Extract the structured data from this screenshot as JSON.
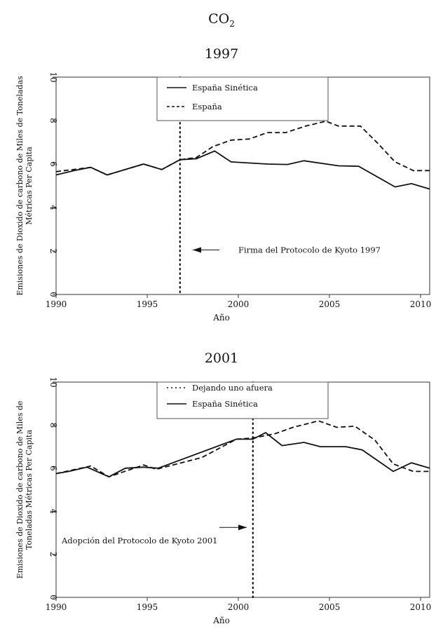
{
  "title": "CO",
  "title_subscript": "2",
  "colors": {
    "lines": "#111111",
    "background": "#ffffff"
  },
  "chart_data": [
    {
      "type": "line",
      "title": "1997",
      "xlabel": "Año",
      "ylabel_lines": [
        "Emisiones de Dioxido de carbono de Miles de Toneladas",
        "Métricas Per Capita"
      ],
      "xlim": [
        1990,
        2010.5
      ],
      "ylim": [
        0,
        10
      ],
      "xticks": [
        1990,
        1995,
        2000,
        2005,
        2010
      ],
      "yticks": [
        0,
        2,
        4,
        6,
        8,
        10
      ],
      "grid": false,
      "legend_placement": "top-center",
      "vline": {
        "x": 1996.8,
        "style": "dotted"
      },
      "annotation": {
        "text": "Firma del Protocolo de Kyoto 1997",
        "arrow": "left",
        "y": 2.05
      },
      "series": [
        {
          "name": "España Sinética",
          "style": "solid",
          "x": [
            1990,
            1991,
            1991.9,
            1992.8,
            1993.8,
            1994.8,
            1995.8,
            1996.8,
            1997.7,
            1998.7,
            1999.6,
            2001.6,
            2002.7,
            2003.6,
            2005.5,
            2006.6,
            2008.6,
            2009.5,
            2010.5
          ],
          "y": [
            5.5,
            5.7,
            5.85,
            5.5,
            5.75,
            6.0,
            5.75,
            6.2,
            6.25,
            6.6,
            6.1,
            6.0,
            5.98,
            6.15,
            5.92,
            5.9,
            4.95,
            5.1,
            4.85
          ]
        },
        {
          "name": "España",
          "style": "dashed",
          "x": [
            1990,
            1991.9,
            1992.8,
            1994.8,
            1995.8,
            1996.8,
            1997.7,
            1998.6,
            1999.6,
            2000.6,
            2001.6,
            2002.6,
            2003.7,
            2004.8,
            2005.5,
            2006.7,
            2007.6,
            2008.6,
            2009.6,
            2010.5
          ],
          "y": [
            5.65,
            5.85,
            5.5,
            6.0,
            5.75,
            6.2,
            6.3,
            6.8,
            7.1,
            7.15,
            7.45,
            7.45,
            7.75,
            7.97,
            7.75,
            7.75,
            7.0,
            6.1,
            5.7,
            5.7
          ]
        }
      ]
    },
    {
      "type": "line",
      "title": "2001",
      "xlabel": "Año",
      "ylabel_lines": [
        "Emisiones de Dioxido de carbono de Miles de",
        "Toneladas Métricas Per Capita"
      ],
      "xlim": [
        1990,
        2010.5
      ],
      "ylim": [
        0,
        10
      ],
      "xticks": [
        1990,
        1995,
        2000,
        2005,
        2010
      ],
      "yticks": [
        0,
        2,
        4,
        6,
        8,
        10
      ],
      "grid": false,
      "legend_placement": "top-center",
      "vline": {
        "x": 2000.8,
        "style": "dotted"
      },
      "annotation": {
        "text": "Adopción del Protocolo de Kyoto 2001",
        "arrow": "right",
        "y": 3.25
      },
      "series": [
        {
          "name": "Dejando uno afuera",
          "style": "dashed",
          "x": [
            1990,
            1991.9,
            1992.9,
            1994.8,
            1995.5,
            1998,
            1999.9,
            2000.8,
            2002,
            2003,
            2004.4,
            2005.4,
            2006.4,
            2007.5,
            2008.5,
            2009.6,
            2010.5
          ],
          "y": [
            5.75,
            6.1,
            5.6,
            6.15,
            5.95,
            6.5,
            7.35,
            7.4,
            7.6,
            7.9,
            8.2,
            7.9,
            7.95,
            7.3,
            6.2,
            5.85,
            5.85
          ]
        },
        {
          "name": "España Sinética",
          "style": "solid",
          "x": [
            1990,
            1990.7,
            1991.7,
            1992.9,
            1993.8,
            1994.8,
            1995.6,
            1999.9,
            2000.8,
            2001.5,
            2002.4,
            2003.6,
            2004.5,
            2005.9,
            2006.8,
            2008.5,
            2009.5,
            2010.5
          ],
          "y": [
            5.75,
            5.85,
            6.05,
            5.6,
            6.0,
            6.05,
            6.0,
            7.35,
            7.35,
            7.65,
            7.05,
            7.2,
            7.0,
            7.0,
            6.85,
            5.85,
            6.25,
            6.0
          ]
        }
      ]
    }
  ]
}
